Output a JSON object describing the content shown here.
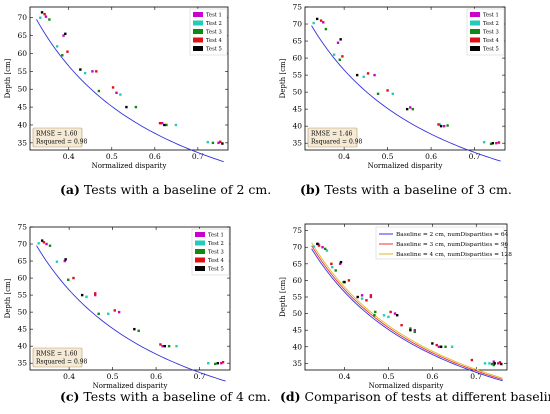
{
  "colors": {
    "fit_curve": "#3333dd",
    "test_1": "#cc00cc",
    "test_2": "#22ccbb",
    "test_3": "#118811",
    "test_4": "#dd1111",
    "test_5": "#000000",
    "stats_box_fill": "#f5ead6",
    "stats_box_stroke": "#b89a6a",
    "baseline_2": "#3333ee",
    "baseline_3": "#ee3333",
    "baseline_4": "#ddbb22"
  },
  "chart_data": [
    {
      "id": "a",
      "type": "scatter",
      "caption_label": "(a)",
      "caption_text": " Tests with a baseline of 2 cm.",
      "xlabel": "Normalized disparity",
      "ylabel": "Depth [cm]",
      "xlim": [
        0.31,
        0.77
      ],
      "ylim": [
        33,
        73
      ],
      "xticks": [
        "0.4",
        "0.5",
        "0.6",
        "0.7"
      ],
      "yticks": [
        "35",
        "40",
        "45",
        "50",
        "55",
        "60",
        "65",
        "70"
      ],
      "legend_position": "top-right",
      "stats": [
        "RMSE = 1.60",
        "Rsquared = 0.98"
      ],
      "fit": {
        "A": 22.6,
        "B": 0.2,
        "from": 0.325,
        "to": 0.76
      },
      "series": [
        {
          "name": "Test 1",
          "color_key": "test_1",
          "x": [
            0.347,
            0.388,
            0.455,
            0.511,
            0.617,
            0.748
          ],
          "y": [
            70.3,
            65.0,
            55.0,
            49.0,
            40.5,
            35.0
          ]
        },
        {
          "name": "Test 2",
          "color_key": "test_2",
          "x": [
            0.334,
            0.373,
            0.438,
            0.52,
            0.649,
            0.723
          ],
          "y": [
            70.0,
            62.0,
            54.5,
            48.5,
            40.0,
            35.2
          ]
        },
        {
          "name": "Test 3",
          "color_key": "test_3",
          "x": [
            0.355,
            0.385,
            0.47,
            0.556,
            0.627,
            0.735
          ],
          "y": [
            69.5,
            59.5,
            49.5,
            45.0,
            40.0,
            35.0
          ]
        },
        {
          "name": "Test 4",
          "color_key": "test_4",
          "x": [
            0.344,
            0.397,
            0.464,
            0.503,
            0.612,
            0.752
          ],
          "y": [
            71.0,
            60.5,
            55.0,
            50.5,
            40.5,
            35.3
          ]
        },
        {
          "name": "Test 5",
          "color_key": "test_5",
          "x": [
            0.338,
            0.392,
            0.427,
            0.534,
            0.622,
            0.757
          ],
          "y": [
            71.5,
            65.5,
            55.5,
            45.0,
            40.0,
            34.8
          ]
        }
      ]
    },
    {
      "id": "b",
      "type": "scatter",
      "caption_label": "(b)",
      "caption_text": " Tests with a baseline of 3 cm.",
      "xlabel": "Normalized disparity",
      "ylabel": "Depth [cm]",
      "xlim": [
        0.31,
        0.77
      ],
      "ylim": [
        33,
        75
      ],
      "xticks": [
        "0.4",
        "0.5",
        "0.6",
        "0.7"
      ],
      "yticks": [
        "35",
        "40",
        "45",
        "50",
        "55",
        "60",
        "65",
        "70",
        "75"
      ],
      "legend_position": "top-right",
      "stats": [
        "RMSE = 1.46",
        "Rsquared = 0.98"
      ],
      "fit": {
        "A": 22.6,
        "B": 0.2,
        "from": 0.325,
        "to": 0.76
      },
      "series": [
        {
          "name": "Test 1",
          "color_key": "test_1",
          "x": [
            0.352,
            0.386,
            0.47,
            0.552,
            0.63,
            0.75
          ],
          "y": [
            70.5,
            64.5,
            55.0,
            45.5,
            40.0,
            35.0
          ]
        },
        {
          "name": "Test 2",
          "color_key": "test_2",
          "x": [
            0.33,
            0.377,
            0.445,
            0.512,
            0.62,
            0.722
          ],
          "y": [
            70.3,
            61.0,
            54.5,
            49.5,
            40.5,
            35.3
          ]
        },
        {
          "name": "Test 3",
          "color_key": "test_3",
          "x": [
            0.358,
            0.39,
            0.478,
            0.558,
            0.638,
            0.738
          ],
          "y": [
            68.5,
            59.5,
            49.5,
            45.0,
            40.2,
            34.8
          ]
        },
        {
          "name": "Test 4",
          "color_key": "test_4",
          "x": [
            0.347,
            0.396,
            0.455,
            0.5,
            0.617,
            0.756
          ],
          "y": [
            71.0,
            60.5,
            55.5,
            50.5,
            40.5,
            35.2
          ]
        },
        {
          "name": "Test 5",
          "color_key": "test_5",
          "x": [
            0.338,
            0.392,
            0.43,
            0.545,
            0.623,
            0.742
          ],
          "y": [
            71.5,
            65.5,
            55.0,
            45.0,
            40.0,
            35.0
          ]
        }
      ]
    },
    {
      "id": "c",
      "type": "scatter",
      "caption_label": "(c)",
      "caption_text": " Tests with a baseline of 4 cm.",
      "xlabel": "Normalized disparity",
      "ylabel": "Depth [cm]",
      "xlim": [
        0.31,
        0.77
      ],
      "ylim": [
        33,
        75
      ],
      "xticks": [
        "0.4",
        "0.5",
        "0.6",
        "0.7"
      ],
      "yticks": [
        "35",
        "40",
        "45",
        "50",
        "55",
        "60",
        "65",
        "70",
        "75"
      ],
      "legend_position": "top-right",
      "stats": [
        "RMSE = 1.60",
        "Rsquared = 0.98"
      ],
      "fit": {
        "A": 22.6,
        "B": 0.2,
        "from": 0.325,
        "to": 0.76
      },
      "series": [
        {
          "name": "Test 1",
          "color_key": "test_1",
          "x": [
            0.348,
            0.39,
            0.46,
            0.515,
            0.615,
            0.75
          ],
          "y": [
            70.0,
            65.0,
            55.0,
            50.0,
            40.0,
            35.0
          ]
        },
        {
          "name": "Test 2",
          "color_key": "test_2",
          "x": [
            0.33,
            0.372,
            0.44,
            0.49,
            0.647,
            0.72
          ],
          "y": [
            70.2,
            64.8,
            54.5,
            49.5,
            40.0,
            35.0
          ]
        },
        {
          "name": "Test 3",
          "color_key": "test_3",
          "x": [
            0.356,
            0.398,
            0.468,
            0.56,
            0.63,
            0.736
          ],
          "y": [
            69.5,
            59.5,
            49.5,
            44.5,
            40.0,
            34.8
          ]
        },
        {
          "name": "Test 4",
          "color_key": "test_4",
          "x": [
            0.342,
            0.41,
            0.46,
            0.505,
            0.61,
            0.754
          ],
          "y": [
            70.5,
            60.0,
            55.5,
            50.5,
            40.5,
            35.3
          ]
        },
        {
          "name": "Test 5",
          "color_key": "test_5",
          "x": [
            0.338,
            0.392,
            0.43,
            0.55,
            0.62,
            0.742
          ],
          "y": [
            71.0,
            65.5,
            55.0,
            45.0,
            40.0,
            35.0
          ]
        }
      ]
    },
    {
      "id": "d",
      "type": "line",
      "caption_label": "(d)",
      "caption_text": " Comparison of tests at different baselines.",
      "xlabel": "Normalized disparity",
      "ylabel": "Depth [cm]",
      "xlim": [
        0.31,
        0.77
      ],
      "ylim": [
        33,
        77
      ],
      "xticks": [
        "0.4",
        "0.5",
        "0.6",
        "0.7"
      ],
      "yticks": [
        "35",
        "40",
        "45",
        "50",
        "55",
        "60",
        "65",
        "70",
        "75"
      ],
      "legend_position": "top-right",
      "lines": [
        {
          "name": "Baseline = 2 cm, numDisparities = 64",
          "color_key": "baseline_2",
          "A": 22.6,
          "B": 0.2
        },
        {
          "name": "Baseline = 3 cm, numDisparities = 96",
          "color_key": "baseline_3",
          "A": 22.9,
          "B": 0.2
        },
        {
          "name": "Baseline = 4 cm, numDisparities = 128",
          "color_key": "baseline_4",
          "A": 23.2,
          "B": 0.2
        }
      ],
      "series": [
        {
          "name": "",
          "color_key": "test_1",
          "x": [
            0.35,
            0.39,
            0.46,
            0.515,
            0.615,
            0.75,
            0.34,
            0.44,
            0.56,
            0.74
          ],
          "y": [
            70.0,
            65.0,
            55.0,
            50.0,
            40.0,
            35.0,
            71.0,
            55.5,
            45.0,
            35.5
          ]
        },
        {
          "name": "",
          "color_key": "test_2",
          "x": [
            0.33,
            0.372,
            0.44,
            0.49,
            0.645,
            0.72,
            0.36,
            0.5,
            0.62,
            0.73
          ],
          "y": [
            70.2,
            64.0,
            54.5,
            49.5,
            40.0,
            35.0,
            69.0,
            49.0,
            40.0,
            35.0
          ]
        },
        {
          "name": "",
          "color_key": "test_3",
          "x": [
            0.356,
            0.398,
            0.468,
            0.56,
            0.63,
            0.736,
            0.38,
            0.47,
            0.55,
            0.74
          ],
          "y": [
            69.5,
            59.5,
            49.5,
            44.5,
            40.0,
            34.8,
            63.0,
            50.5,
            45.5,
            34.5
          ]
        },
        {
          "name": "",
          "color_key": "test_4",
          "x": [
            0.342,
            0.41,
            0.46,
            0.505,
            0.61,
            0.754,
            0.37,
            0.45,
            0.53,
            0.69
          ],
          "y": [
            70.5,
            60.0,
            55.5,
            50.5,
            40.5,
            35.3,
            65.0,
            54.0,
            46.5,
            36.0
          ]
        },
        {
          "name": "",
          "color_key": "test_5",
          "x": [
            0.338,
            0.392,
            0.43,
            0.55,
            0.62,
            0.742,
            0.4,
            0.52,
            0.6,
            0.757
          ],
          "y": [
            71.0,
            65.5,
            55.0,
            45.0,
            40.0,
            35.0,
            59.5,
            49.5,
            41.0,
            34.8
          ]
        }
      ]
    }
  ]
}
